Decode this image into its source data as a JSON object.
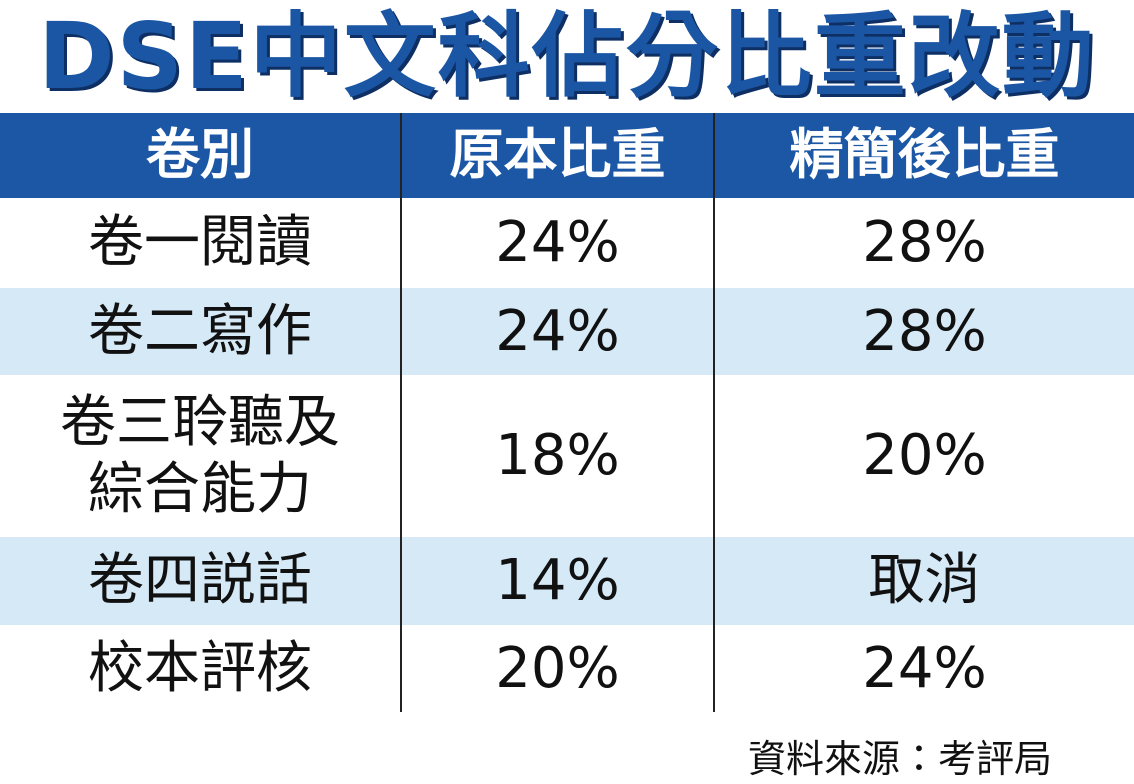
{
  "header": {
    "title": "DSE中文科佔分比重改動"
  },
  "table": {
    "columns": [
      "卷別",
      "原本比重",
      "精簡後比重"
    ],
    "rows": [
      [
        [
          "卷一閱讀"
        ],
        "24%",
        "28%"
      ],
      [
        [
          "卷二寫作"
        ],
        "24%",
        "28%"
      ],
      [
        [
          "卷三聆聽及",
          "綜合能力"
        ],
        "18%",
        "20%"
      ],
      [
        [
          "卷四説話"
        ],
        "14%",
        "取消"
      ],
      [
        [
          "校本評核"
        ],
        "20%",
        "24%"
      ]
    ]
  },
  "footer": {
    "source": "資料來源：考評局"
  }
}
